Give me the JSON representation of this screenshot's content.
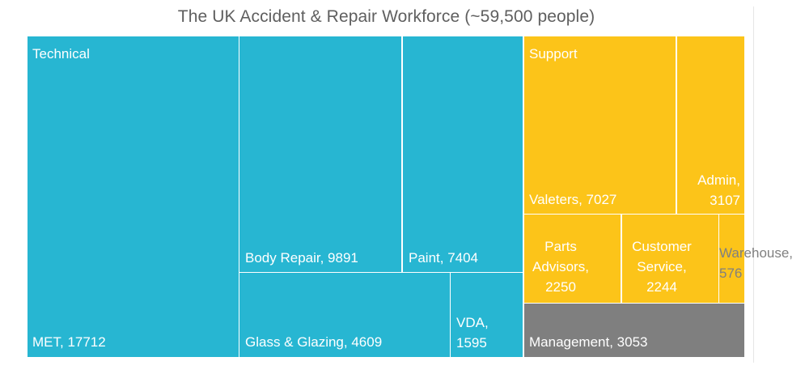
{
  "chart_data": {
    "type": "treemap",
    "title": "The UK Accident & Repair Workforce (~59,500 people)",
    "groups": [
      {
        "name": "Technical",
        "color": "#27B6D2",
        "items": [
          {
            "name": "MET",
            "value": 17712,
            "label": "MET, 17712"
          },
          {
            "name": "Body Repair",
            "value": 9891,
            "label": "Body Repair, 9891"
          },
          {
            "name": "Paint",
            "value": 7404,
            "label": "Paint, 7404"
          },
          {
            "name": "Glass & Glazing",
            "value": 4609,
            "label": "Glass & Glazing, 4609"
          },
          {
            "name": "VDA",
            "value": 1595,
            "label": "VDA, 1595"
          }
        ]
      },
      {
        "name": "Support",
        "color": "#FCC419",
        "items": [
          {
            "name": "Valeters",
            "value": 7027,
            "label": "Valeters, 7027"
          },
          {
            "name": "Admin",
            "value": 3107,
            "label": "Admin, 3107"
          },
          {
            "name": "Parts Advisors",
            "value": 2250,
            "label": "Parts Advisors, 2250"
          },
          {
            "name": "Customer Service",
            "value": 2244,
            "label": "Customer Service, 2244"
          },
          {
            "name": "Warehouse",
            "value": 576,
            "label": "Warehouse, 576"
          }
        ]
      },
      {
        "name": "Management",
        "color": "#7F7F7F",
        "items": [
          {
            "name": "Management",
            "value": 3053,
            "label": "Management, 3053"
          }
        ]
      }
    ],
    "label_color": "#FFFFFF",
    "overflow_label_color": "#808080"
  }
}
